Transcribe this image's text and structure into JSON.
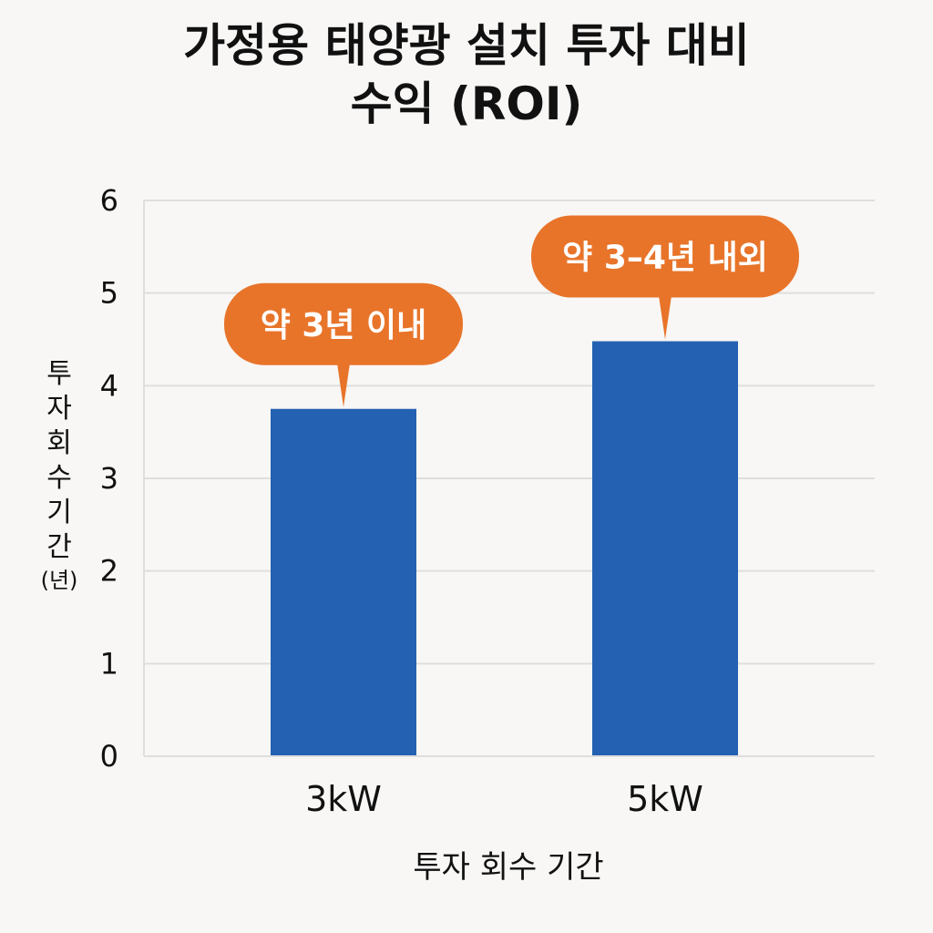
{
  "chart_data": {
    "type": "bar",
    "title_lines": [
      "가정용 태양광 설치 투자 대비",
      "수익 (ROI)"
    ],
    "categories": [
      "3kW",
      "5kW"
    ],
    "values": [
      3.75,
      4.48
    ],
    "annotations": [
      "약 3년 이내",
      "약 3–4년 내외"
    ],
    "ylabel_lines": [
      "투",
      "자",
      "회",
      "수",
      "기",
      "간"
    ],
    "ylabel_unit": "(년)",
    "xlabel": "투자 회수 기간",
    "ylim": [
      0,
      6
    ],
    "yticks": [
      0,
      1,
      2,
      3,
      4,
      5,
      6
    ],
    "grid": true,
    "bar_color": "#2461b2",
    "callout_color": "#e8742a",
    "grid_color": "#dedede"
  }
}
